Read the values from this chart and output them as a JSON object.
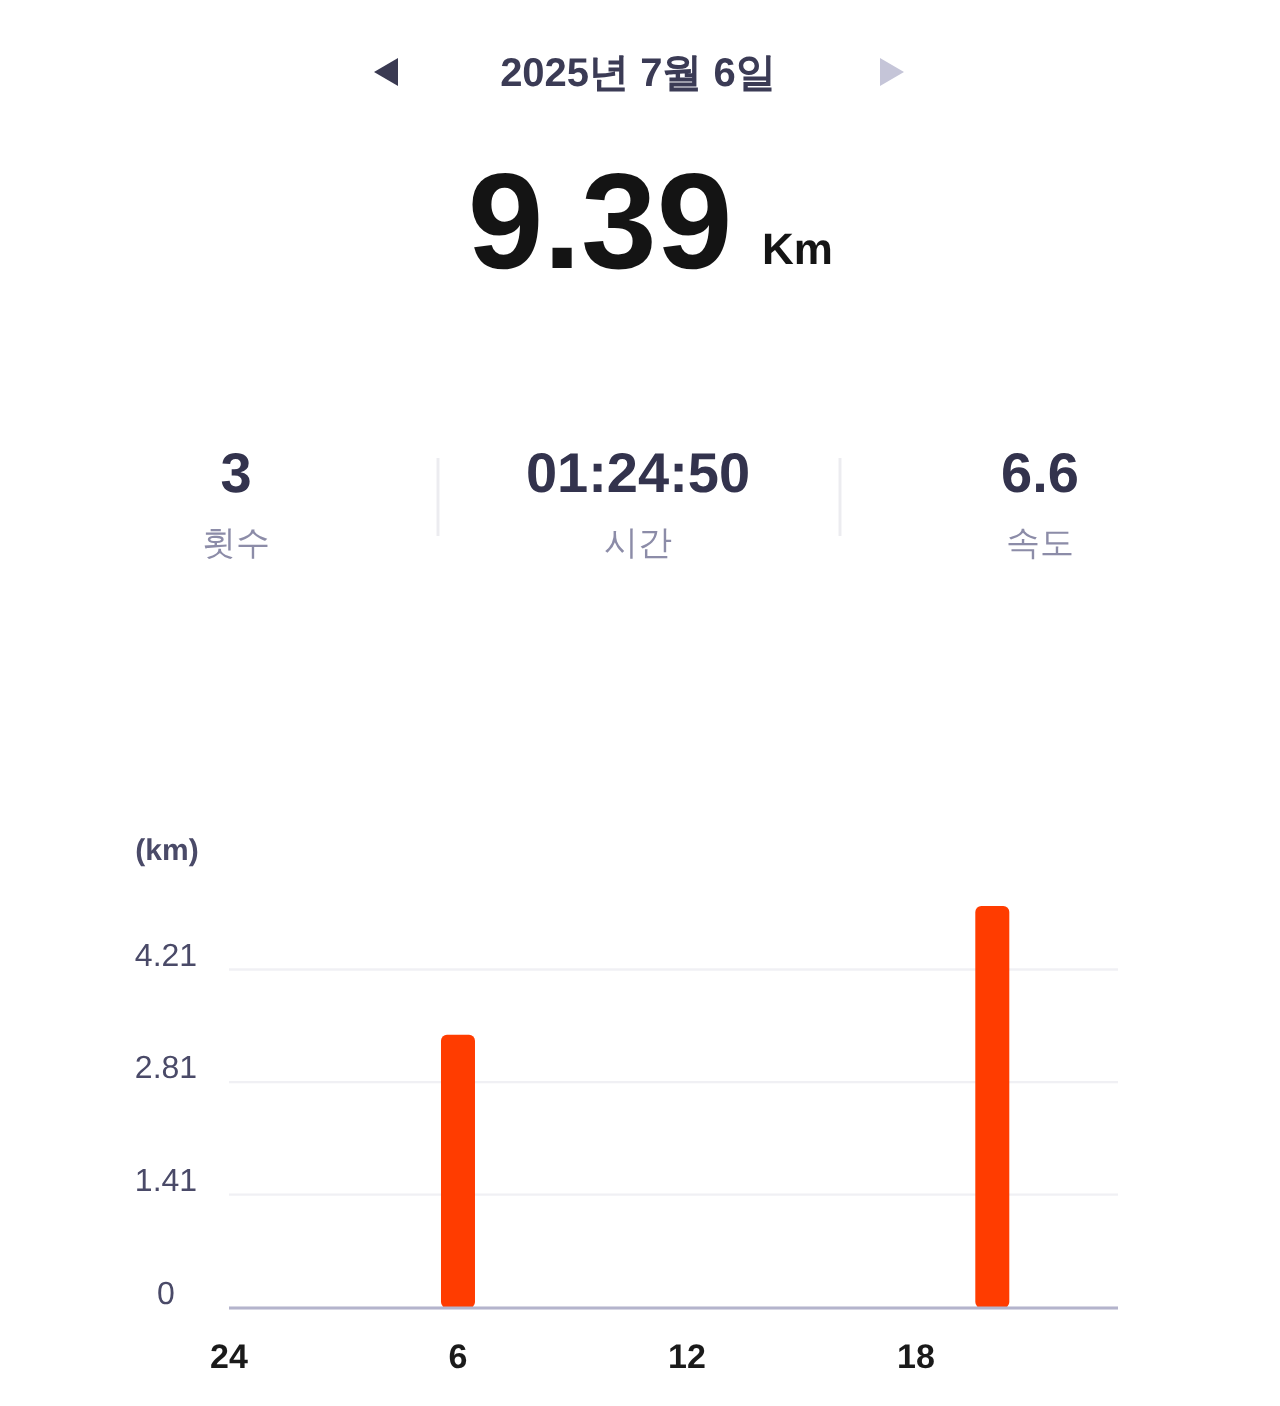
{
  "chart_data": {
    "type": "bar",
    "title": "2025년 7월 6일",
    "annotations": [
      "9.39",
      "Km",
      "3",
      "횟수",
      "01:24:50",
      "시간",
      "6.6",
      "속도"
    ],
    "ylabel": "(km)",
    "categories": [
      "24",
      null,
      null,
      null,
      null,
      null,
      "6",
      null,
      null,
      null,
      null,
      null,
      "12",
      null,
      null,
      null,
      null,
      null,
      "18",
      null,
      null,
      null,
      null,
      null
    ],
    "values": [
      null,
      null,
      null,
      null,
      null,
      null,
      3.4,
      null,
      null,
      null,
      null,
      null,
      null,
      null,
      null,
      null,
      null,
      null,
      null,
      null,
      5.0,
      null,
      null,
      null
    ],
    "color": "#ff3c00",
    "ylim": [
      0,
      5.0
    ],
    "yticks": [
      0,
      1.41,
      2.81,
      4.21
    ],
    "grid": "y"
  }
}
